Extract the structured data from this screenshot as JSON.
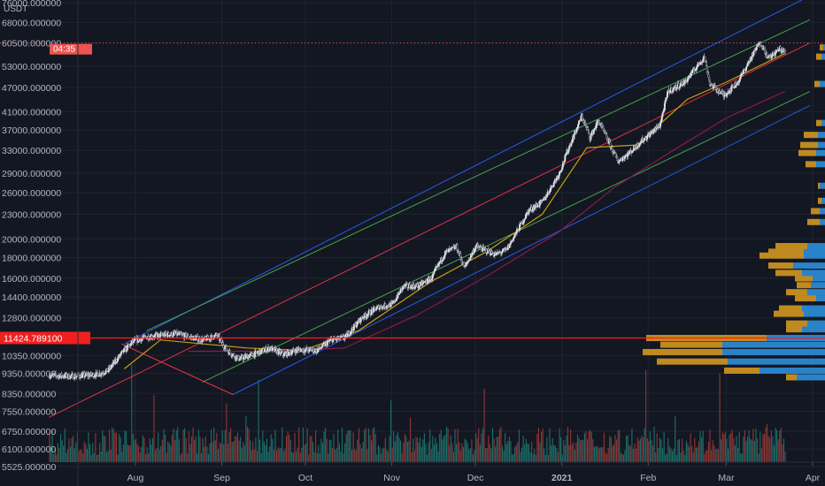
{
  "chart_data": {
    "type": "candlestick",
    "currency_label": "USDT",
    "y_axis": {
      "scale": "log",
      "tick_labels": [
        "76000.000000",
        "68000.000000",
        "60500.000000",
        "53000.000000",
        "47000.000000",
        "41000.000000",
        "37000.000000",
        "33000.000000",
        "29000.000000",
        "26000.000000",
        "23000.000000",
        "20000.000000",
        "18000.000000",
        "16000.000000",
        "14400.000000",
        "12800.000000",
        "10350.000000",
        "9350.000000",
        "8350.000000",
        "7550.000000",
        "6750.000000",
        "6100.000000",
        "5525.000000"
      ],
      "tick_values": [
        76000,
        68000,
        60500,
        53000,
        47000,
        41000,
        37000,
        33000,
        29000,
        26000,
        23000,
        20000,
        18000,
        16000,
        14400,
        12800,
        10350,
        9350,
        8350,
        7550,
        6750,
        6100,
        5525
      ]
    },
    "x_axis": {
      "tick_labels": [
        "Aug",
        "Sep",
        "Oct",
        "Nov",
        "Dec",
        "2021",
        "Feb",
        "Mar",
        "Apr"
      ],
      "tick_values": [
        "2020-08-01",
        "2020-09-01",
        "2020-10-01",
        "2020-11-01",
        "2020-12-01",
        "2021-01-01",
        "2021-02-01",
        "2021-03-01",
        "2021-04-01"
      ]
    },
    "price_label": "11424.789100",
    "price_label_value": 11424.7891,
    "current_label": "04:35",
    "current_price": 60500,
    "price_path": [
      [
        "2020-07-01",
        9250
      ],
      [
        "2020-07-10",
        9200
      ],
      [
        "2020-07-18",
        9300
      ],
      [
        "2020-07-22",
        9500
      ],
      [
        "2020-07-27",
        10500
      ],
      [
        "2020-07-31",
        11200
      ],
      [
        "2020-08-05",
        11500
      ],
      [
        "2020-08-10",
        11600
      ],
      [
        "2020-08-15",
        11700
      ],
      [
        "2020-08-20",
        11500
      ],
      [
        "2020-08-25",
        11300
      ],
      [
        "2020-08-30",
        11600
      ],
      [
        "2020-09-03",
        10600
      ],
      [
        "2020-09-07",
        10150
      ],
      [
        "2020-09-12",
        10400
      ],
      [
        "2020-09-18",
        10800
      ],
      [
        "2020-09-23",
        10400
      ],
      [
        "2020-09-28",
        10700
      ],
      [
        "2020-10-05",
        10650
      ],
      [
        "2020-10-10",
        11300
      ],
      [
        "2020-10-15",
        11450
      ],
      [
        "2020-10-21",
        12800
      ],
      [
        "2020-10-27",
        13600
      ],
      [
        "2020-11-01",
        13800
      ],
      [
        "2020-11-05",
        15300
      ],
      [
        "2020-11-10",
        15300
      ],
      [
        "2020-11-15",
        16000
      ],
      [
        "2020-11-20",
        18500
      ],
      [
        "2020-11-24",
        19100
      ],
      [
        "2020-11-27",
        17000
      ],
      [
        "2020-12-01",
        19200
      ],
      [
        "2020-12-08",
        18300
      ],
      [
        "2020-12-12",
        18800
      ],
      [
        "2020-12-16",
        21000
      ],
      [
        "2020-12-20",
        23500
      ],
      [
        "2020-12-25",
        24700
      ],
      [
        "2020-12-31",
        29000
      ],
      [
        "2021-01-03",
        33000
      ],
      [
        "2021-01-08",
        40000
      ],
      [
        "2021-01-11",
        35500
      ],
      [
        "2021-01-14",
        39000
      ],
      [
        "2021-01-21",
        31000
      ],
      [
        "2021-01-25",
        32500
      ],
      [
        "2021-01-29",
        34500
      ],
      [
        "2021-02-05",
        38000
      ],
      [
        "2021-02-08",
        46000
      ],
      [
        "2021-02-14",
        48500
      ],
      [
        "2021-02-21",
        56000
      ],
      [
        "2021-02-23",
        48000
      ],
      [
        "2021-02-28",
        45000
      ],
      [
        "2021-03-05",
        48500
      ],
      [
        "2021-03-10",
        56000
      ],
      [
        "2021-03-13",
        61000
      ],
      [
        "2021-03-16",
        55500
      ],
      [
        "2021-03-20",
        58500
      ],
      [
        "2021-03-22",
        57500
      ]
    ],
    "volume_scale": "relative, 0-1",
    "volume_profile_scale": "relative, 0-1",
    "volume_profile": [
      {
        "price": 5700,
        "up": 0.0,
        "down": 0.0
      },
      {
        "price": 9150,
        "up": 0.16,
        "down": 0.06
      },
      {
        "price": 9500,
        "up": 0.37,
        "down": 0.2
      },
      {
        "price": 10000,
        "up": 0.55,
        "down": 0.4
      },
      {
        "price": 10550,
        "up": 0.58,
        "down": 0.45
      },
      {
        "price": 11000,
        "up": 0.58,
        "down": 0.35
      },
      {
        "price": 11424,
        "up": 0.33,
        "down": 0.68
      },
      {
        "price": 12000,
        "up": 0.13,
        "down": 0.09
      },
      {
        "price": 12400,
        "up": 0.1,
        "down": 0.12
      },
      {
        "price": 13100,
        "up": 0.12,
        "down": 0.17
      },
      {
        "price": 13500,
        "up": 0.13,
        "down": 0.13
      },
      {
        "price": 14300,
        "up": 0.05,
        "down": 0.12
      },
      {
        "price": 14800,
        "up": 0.1,
        "down": 0.12
      },
      {
        "price": 15400,
        "up": 0.08,
        "down": 0.08
      },
      {
        "price": 16000,
        "up": 0.07,
        "down": 0.1
      },
      {
        "price": 16500,
        "up": 0.13,
        "down": 0.15
      },
      {
        "price": 17200,
        "up": 0.18,
        "down": 0.14
      },
      {
        "price": 18200,
        "up": 0.12,
        "down": 0.25
      },
      {
        "price": 18600,
        "up": 0.12,
        "down": 0.2
      },
      {
        "price": 19200,
        "up": 0.1,
        "down": 0.18
      },
      {
        "price": 22000,
        "up": 0.03,
        "down": 0.07
      },
      {
        "price": 23400,
        "up": 0.03,
        "down": 0.05
      },
      {
        "price": 24800,
        "up": 0.02,
        "down": 0.02
      },
      {
        "price": 27000,
        "up": 0.03,
        "down": 0.01
      },
      {
        "price": 30500,
        "up": 0.05,
        "down": 0.06
      },
      {
        "price": 32500,
        "up": 0.05,
        "down": 0.1
      },
      {
        "price": 34000,
        "up": 0.04,
        "down": 0.1
      },
      {
        "price": 36000,
        "up": 0.04,
        "down": 0.08
      },
      {
        "price": 38500,
        "up": 0.02,
        "down": 0.03
      },
      {
        "price": 48000,
        "up": 0.03,
        "down": 0.03
      },
      {
        "price": 56000,
        "up": 0.02,
        "down": 0.03
      },
      {
        "price": 59000,
        "up": 0.01,
        "down": 0.02
      }
    ],
    "moving_averages": [
      {
        "color": "#c8a010",
        "points": [
          [
            "2020-07-28",
            9600
          ],
          [
            "2020-08-10",
            11300
          ],
          [
            "2020-09-10",
            10800
          ],
          [
            "2020-09-30",
            10650
          ],
          [
            "2020-10-20",
            11900
          ],
          [
            "2020-11-15",
            15700
          ],
          [
            "2020-12-05",
            18600
          ],
          [
            "2020-12-25",
            23000
          ],
          [
            "2021-01-10",
            33500
          ],
          [
            "2021-01-28",
            34000
          ],
          [
            "2021-02-15",
            44000
          ],
          [
            "2021-03-01",
            48500
          ],
          [
            "2021-03-22",
            57000
          ]
        ]
      },
      {
        "color": "#8b1a4a",
        "points": [
          [
            "2020-08-20",
            10600
          ],
          [
            "2020-09-20",
            10600
          ],
          [
            "2020-10-15",
            10800
          ],
          [
            "2020-11-10",
            13000
          ],
          [
            "2020-12-05",
            16200
          ],
          [
            "2020-12-31",
            20800
          ],
          [
            "2021-01-20",
            26800
          ],
          [
            "2021-02-10",
            33000
          ],
          [
            "2021-03-01",
            39600
          ],
          [
            "2021-03-22",
            46000
          ]
        ]
      }
    ],
    "grid": true,
    "colors": {
      "background": "#131722",
      "up_candle": "#26a69a",
      "down_candle": "#ef5350",
      "volume_up": "#1e7a72",
      "volume_down": "#9e3b3a",
      "current_price_label": "#ef5350",
      "price_label_bg": "#ef2020",
      "profile_up": "#2a82c8",
      "profile_down": "#c08a20"
    }
  }
}
